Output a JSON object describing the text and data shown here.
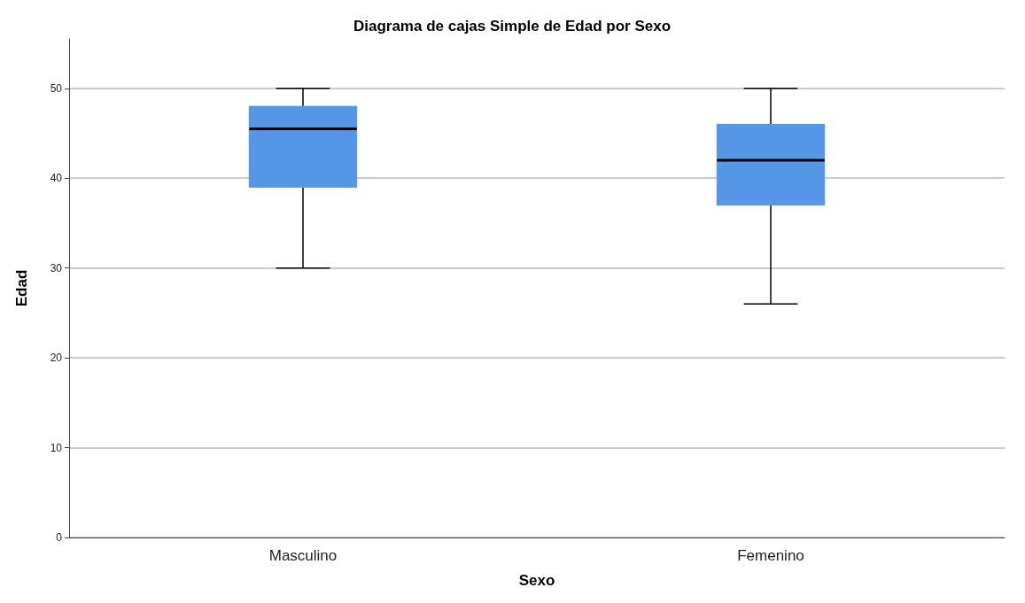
{
  "chart_data": {
    "type": "box",
    "title": "Diagrama de cajas Simple de Edad por Sexo",
    "xlabel": "Sexo",
    "ylabel": "Edad",
    "categories": [
      "Masculino",
      "Femenino"
    ],
    "boxes": [
      {
        "low": 30,
        "q1": 39,
        "median": 45.5,
        "q3": 48,
        "high": 50
      },
      {
        "low": 26,
        "q1": 37,
        "median": 42,
        "q3": 46,
        "high": 50
      }
    ],
    "color": "#5596e6",
    "ylim": [
      0,
      55.5
    ],
    "yticks": [
      0,
      10,
      20,
      30,
      40,
      50
    ],
    "grid": "y"
  }
}
